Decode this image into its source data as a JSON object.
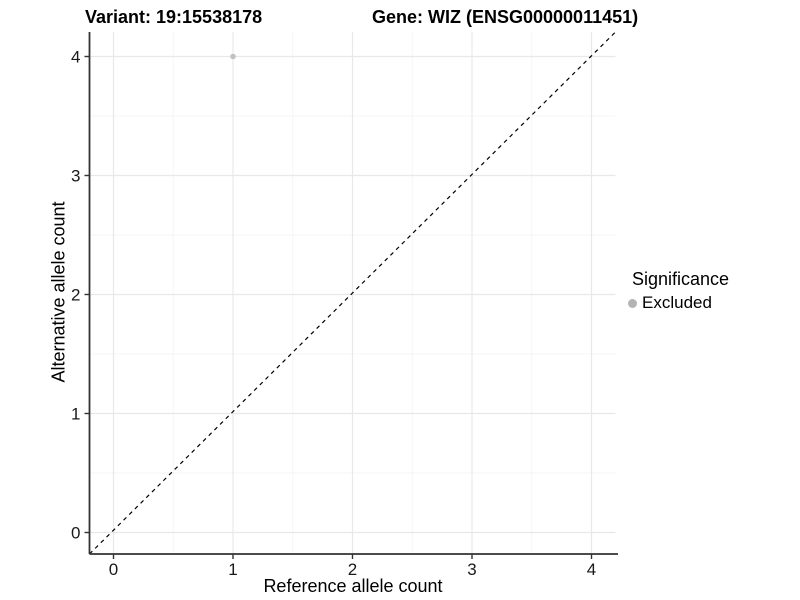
{
  "titles": {
    "variant": "Variant: 19:15538178",
    "gene": "Gene: WIZ (ENSG00000011451)"
  },
  "chart_data": {
    "type": "scatter",
    "title_left": "Variant: 19:15538178",
    "title_right": "Gene: WIZ (ENSG00000011451)",
    "xlabel": "Reference allele count",
    "ylabel": "Alternative allele count",
    "xlim": [
      -0.2,
      4.2
    ],
    "ylim": [
      -0.2,
      4.2
    ],
    "xticks": [
      0,
      1,
      2,
      3,
      4
    ],
    "yticks": [
      0,
      1,
      2,
      3,
      4
    ],
    "x_minor_gridlines": [
      0.5,
      1.5,
      2.5,
      3.5
    ],
    "y_minor_gridlines": [
      0.5,
      1.5,
      2.5,
      3.5
    ],
    "grid": "on",
    "points": [
      {
        "x": 1,
        "y": 4,
        "series": "Excluded"
      }
    ],
    "reference_line": {
      "kind": "identity",
      "slope": 1,
      "intercept": 0,
      "style": "dashed"
    },
    "legend": {
      "title": "Significance",
      "position": "right",
      "entries": [
        {
          "label": "Excluded",
          "marker": "circle"
        }
      ]
    }
  },
  "legend": {
    "title": "Significance",
    "entries": [
      {
        "label": "Excluded"
      }
    ]
  },
  "colors": {
    "point": "#c2c2c2",
    "legend_key": "#b3b3b3",
    "grid_major": "#e8e8e8",
    "grid_minor": "#f4f4f4",
    "axis_line": "#333333",
    "tick_text": "#1a1a1a",
    "reference_line": "#000000",
    "background": "#ffffff"
  }
}
